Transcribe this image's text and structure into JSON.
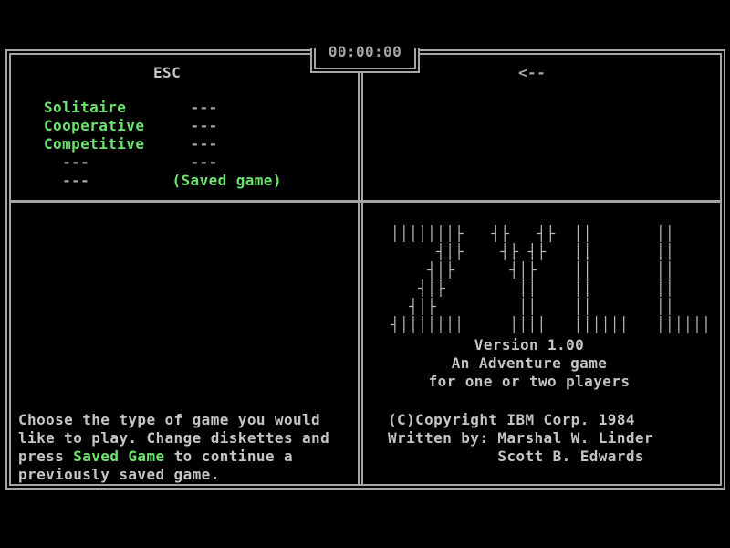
{
  "palette": {
    "bg": "#000000",
    "text_gray": "#c4c4c4",
    "border_gray": "#a5a5a5",
    "green": "#6fe26f"
  },
  "timer": {
    "value": "00:00:00"
  },
  "left_panel": {
    "header": "ESC",
    "menu_rows": [
      [
        {
          "t": "Solitaire",
          "c": "green"
        },
        {
          "t": "       ---",
          "c": "dim"
        }
      ],
      [
        {
          "t": "Cooperative",
          "c": "green"
        },
        {
          "t": "     ---",
          "c": "dim"
        }
      ],
      [
        {
          "t": "Competitive",
          "c": "green"
        },
        {
          "t": "     ---",
          "c": "dim"
        }
      ],
      [
        {
          "t": "  ---           ---",
          "c": "dim"
        }
      ],
      [
        {
          "t": "  ---         ",
          "c": "dim"
        },
        {
          "t": "(Saved game)",
          "c": "green"
        }
      ]
    ],
    "help_lines": [
      [
        {
          "t": "Choose the type of game you would",
          "c": "gray"
        }
      ],
      [
        {
          "t": "like to play. Change diskettes and",
          "c": "gray"
        }
      ],
      [
        {
          "t": "press ",
          "c": "gray"
        },
        {
          "t": "Saved Game",
          "c": "green"
        },
        {
          "t": " to continue a",
          "c": "gray"
        }
      ],
      [
        {
          "t": "previously saved game.",
          "c": "gray"
        }
      ]
    ]
  },
  "right_panel": {
    "header": "<--",
    "logo_rows": [
      "│││││││├   ┤├   ┤├  ││       ││",
      "     ┤│├    ┤├ ┤├   ││       ││",
      "    ┤│├      ┤│├    ││       ││",
      "   ┤│├        ││    ││       ││",
      "  ┤│├         ││    ││       ││",
      "┤│││││││     ││││   ││││││   ││││││"
    ],
    "tagline_lines": [
      "Version 1.00",
      "An Adventure game",
      "for one or two players"
    ],
    "credit_lines": [
      "(C)Copyright IBM Corp. 1984",
      "Written by: Marshal W. Linder",
      "            Scott B. Edwards"
    ]
  }
}
